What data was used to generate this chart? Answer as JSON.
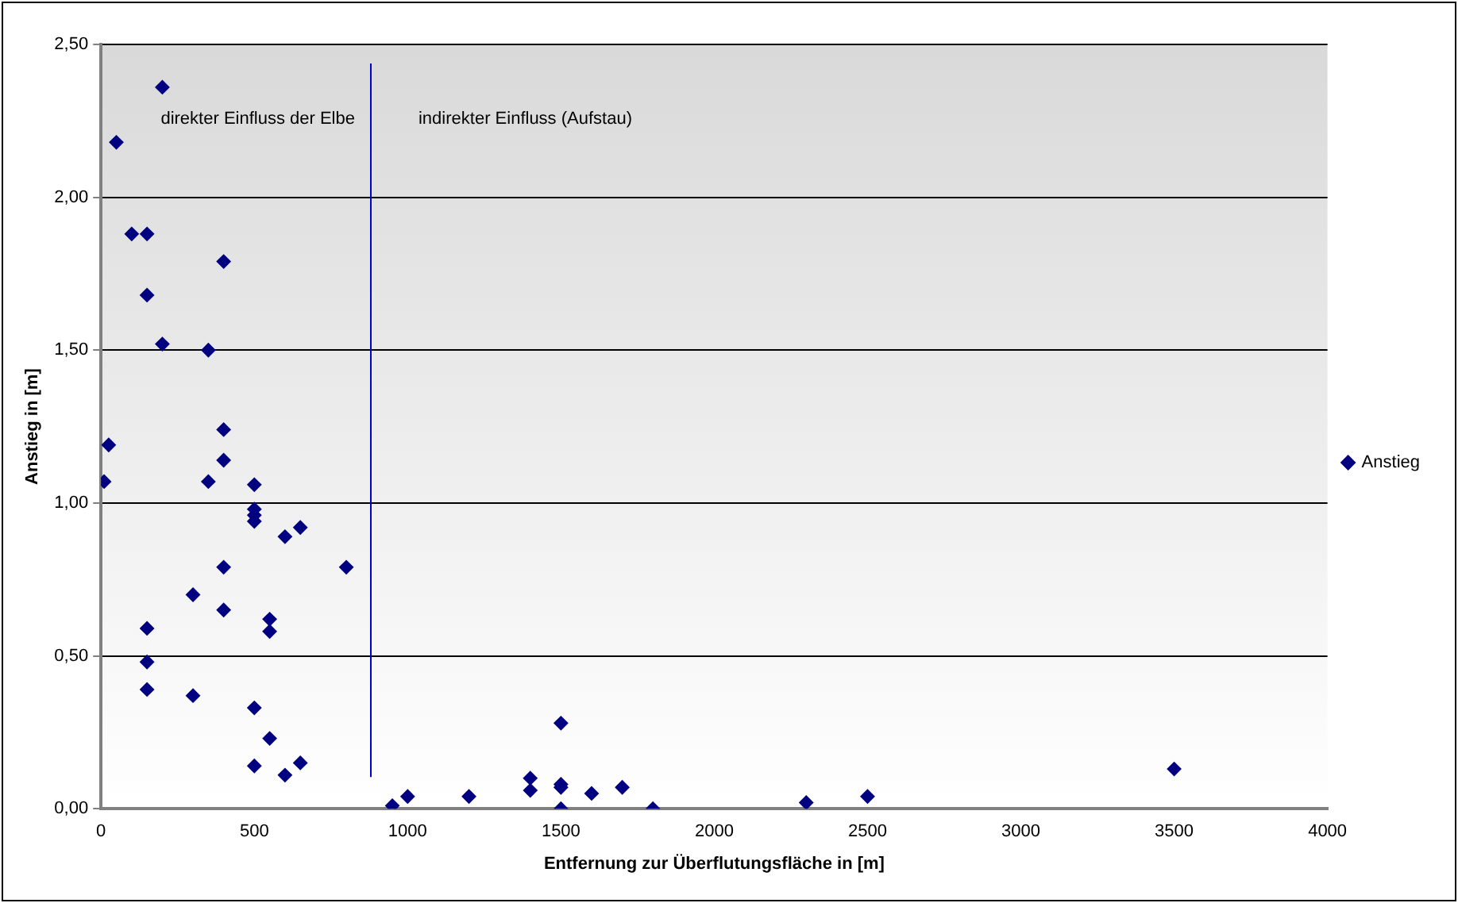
{
  "chart_data": {
    "type": "scatter",
    "xlabel": "Entfernung zur Überflutungsfläche in [m]",
    "ylabel": "Anstieg in [m]",
    "series": [
      {
        "name": "Anstieg",
        "color": "#000080",
        "x": [
          10,
          25,
          50,
          100,
          150,
          150,
          200,
          200,
          350,
          400,
          400,
          400,
          350,
          500,
          500,
          500,
          500,
          650,
          600,
          400,
          800,
          300,
          400,
          550,
          550,
          150,
          150,
          150,
          300,
          500,
          550,
          500,
          650,
          600,
          950,
          1000,
          1200,
          1400,
          1400,
          1500,
          1500,
          1500,
          1500,
          1600,
          1700,
          1800,
          2300,
          2500,
          3500
        ],
        "values": [
          1.07,
          1.19,
          2.18,
          1.88,
          1.88,
          1.68,
          2.36,
          1.52,
          1.5,
          1.79,
          1.24,
          1.14,
          1.07,
          1.06,
          0.98,
          0.96,
          0.94,
          0.92,
          0.89,
          0.79,
          0.79,
          0.7,
          0.65,
          0.62,
          0.58,
          0.59,
          0.48,
          0.39,
          0.37,
          0.33,
          0.23,
          0.14,
          0.15,
          0.11,
          0.01,
          0.04,
          0.04,
          0.1,
          0.06,
          0.28,
          0.08,
          0.07,
          0,
          0.05,
          0.07,
          0,
          0.02,
          0.04,
          0.13
        ]
      }
    ],
    "xlim": [
      0,
      4000
    ],
    "xticks": [
      0,
      500,
      1000,
      1500,
      2000,
      2500,
      3000,
      3500,
      4000
    ],
    "ylim": [
      0,
      2.5
    ],
    "yticks": [
      {
        "value": 0,
        "label": "0,00"
      },
      {
        "value": 0.5,
        "label": "0,50"
      },
      {
        "value": 1,
        "label": "1,00"
      },
      {
        "value": 1.5,
        "label": "1,50"
      },
      {
        "value": 2,
        "label": "2,00"
      },
      {
        "value": 2.5,
        "label": "2,50"
      }
    ],
    "ref_lines": [
      {
        "axis": "x",
        "value": 880,
        "color": "#0000cc"
      }
    ],
    "annotations": [
      "direkter Einfluss der Elbe",
      "indirekter Einfluss (Aufstau)"
    ],
    "grid": "y",
    "legend": "right",
    "marker": "diamond"
  }
}
